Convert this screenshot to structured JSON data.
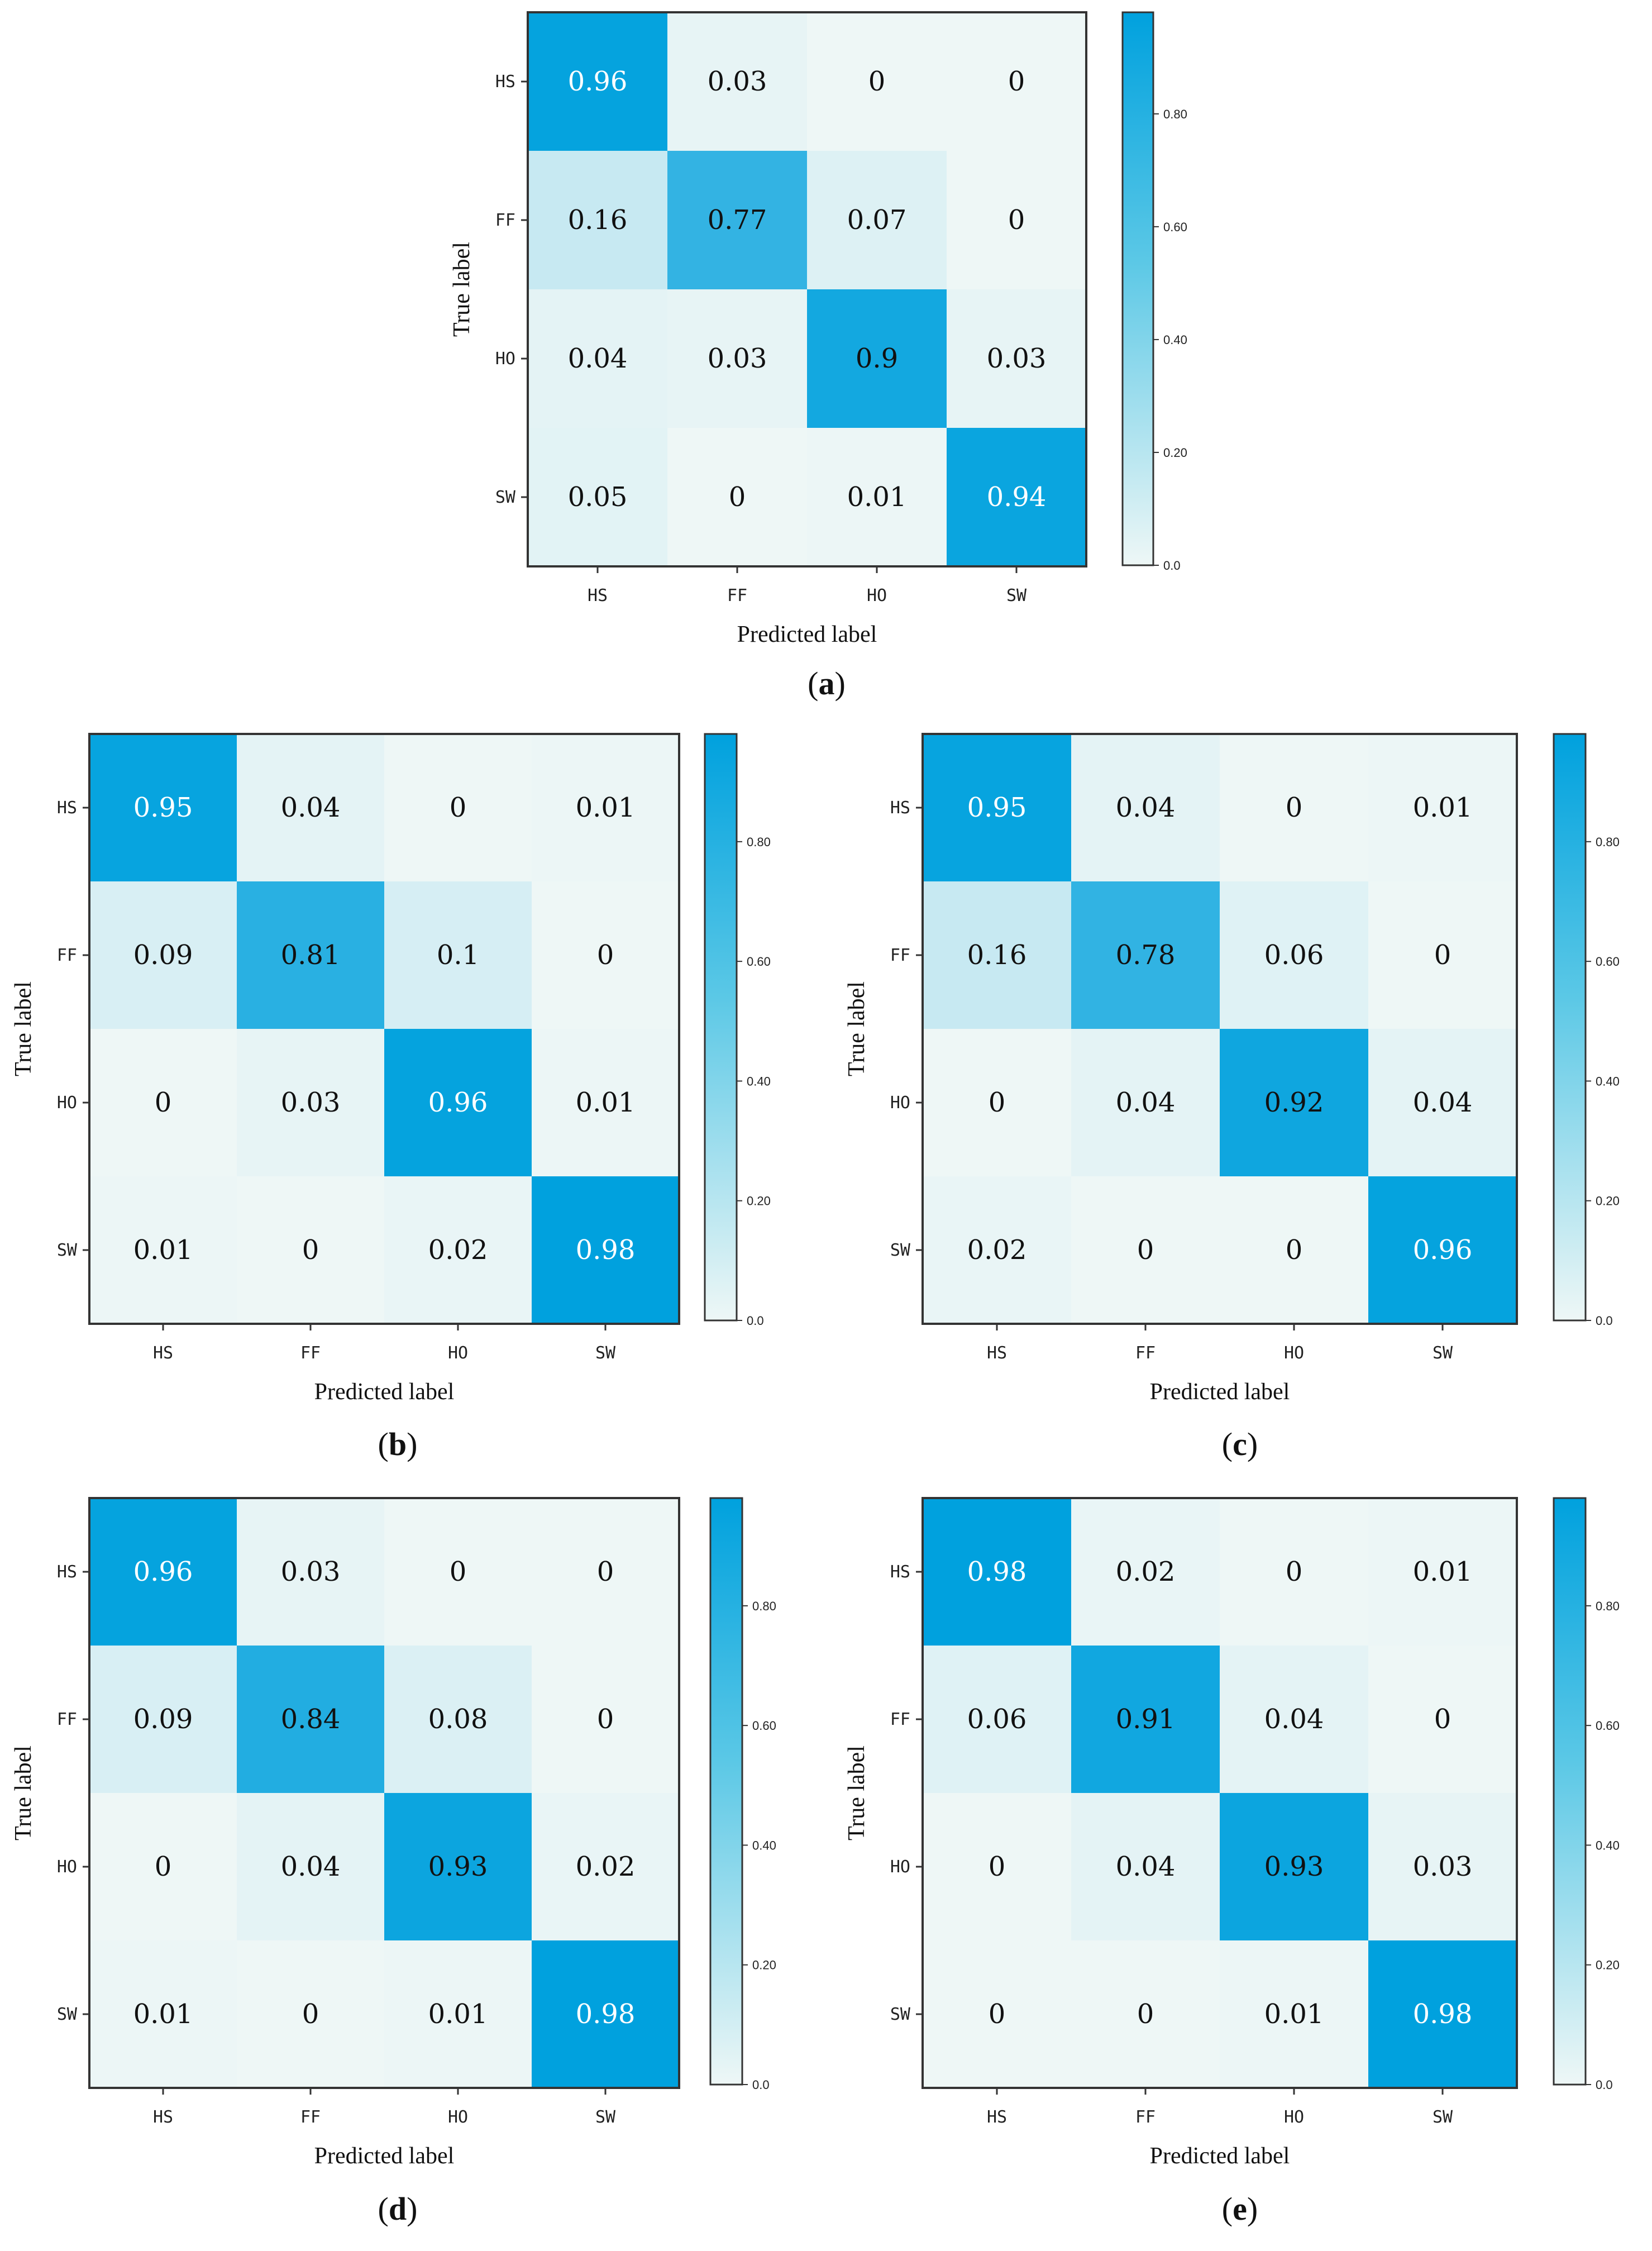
{
  "colors": {
    "low": "#eef7f6",
    "high": "#00a1de",
    "frame": "#333333",
    "text_dark": "#111111",
    "text_light": "#ffffff"
  },
  "chart_data": [
    {
      "type": "heatmap",
      "caption": "a",
      "xlabel": "Predicted label",
      "ylabel": "True label",
      "x_categories": [
        "HS",
        "FF",
        "HO",
        "SW"
      ],
      "y_categories": [
        "HS",
        "FF",
        "HO",
        "SW"
      ],
      "values": [
        [
          0.96,
          0.03,
          0,
          0
        ],
        [
          0.16,
          0.77,
          0.07,
          0
        ],
        [
          0.04,
          0.03,
          0.9,
          0.03
        ],
        [
          0.05,
          0,
          0.01,
          0.94
        ]
      ],
      "colorbar_ticks": [
        "0.0",
        "0.20",
        "0.40",
        "0.60",
        "0.80"
      ],
      "colorbar_range": [
        0,
        0.98
      ]
    },
    {
      "type": "heatmap",
      "caption": "b",
      "xlabel": "Predicted label",
      "ylabel": "True label",
      "x_categories": [
        "HS",
        "FF",
        "HO",
        "SW"
      ],
      "y_categories": [
        "HS",
        "FF",
        "HO",
        "SW"
      ],
      "values": [
        [
          0.95,
          0.04,
          0,
          0.01
        ],
        [
          0.09,
          0.81,
          0.1,
          0
        ],
        [
          0,
          0.03,
          0.96,
          0.01
        ],
        [
          0.01,
          0,
          0.02,
          0.98
        ]
      ],
      "colorbar_ticks": [
        "0.0",
        "0.20",
        "0.40",
        "0.60",
        "0.80"
      ],
      "colorbar_range": [
        0,
        0.98
      ]
    },
    {
      "type": "heatmap",
      "caption": "c",
      "xlabel": "Predicted label",
      "ylabel": "True label",
      "x_categories": [
        "HS",
        "FF",
        "HO",
        "SW"
      ],
      "y_categories": [
        "HS",
        "FF",
        "HO",
        "SW"
      ],
      "values": [
        [
          0.95,
          0.04,
          0,
          0.01
        ],
        [
          0.16,
          0.78,
          0.06,
          0
        ],
        [
          0,
          0.04,
          0.92,
          0.04
        ],
        [
          0.02,
          0,
          0,
          0.96
        ]
      ],
      "colorbar_ticks": [
        "0.0",
        "0.20",
        "0.40",
        "0.60",
        "0.80"
      ],
      "colorbar_range": [
        0,
        0.98
      ]
    },
    {
      "type": "heatmap",
      "caption": "d",
      "xlabel": "Predicted label",
      "ylabel": "True label",
      "x_categories": [
        "HS",
        "FF",
        "HO",
        "SW"
      ],
      "y_categories": [
        "HS",
        "FF",
        "HO",
        "SW"
      ],
      "values": [
        [
          0.96,
          0.03,
          0,
          0
        ],
        [
          0.09,
          0.84,
          0.08,
          0
        ],
        [
          0,
          0.04,
          0.93,
          0.02
        ],
        [
          0.01,
          0,
          0.01,
          0.98
        ]
      ],
      "colorbar_ticks": [
        "0.0",
        "0.20",
        "0.40",
        "0.60",
        "0.80"
      ],
      "colorbar_range": [
        0,
        0.98
      ]
    },
    {
      "type": "heatmap",
      "caption": "e",
      "xlabel": "Predicted label",
      "ylabel": "True label",
      "x_categories": [
        "HS",
        "FF",
        "HO",
        "SW"
      ],
      "y_categories": [
        "HS",
        "FF",
        "HO",
        "SW"
      ],
      "values": [
        [
          0.98,
          0.02,
          0,
          0.01
        ],
        [
          0.06,
          0.91,
          0.04,
          0
        ],
        [
          0,
          0.04,
          0.93,
          0.03
        ],
        [
          0,
          0,
          0.01,
          0.98
        ]
      ],
      "colorbar_ticks": [
        "0.0",
        "0.20",
        "0.40",
        "0.60",
        "0.80"
      ],
      "colorbar_range": [
        0,
        0.98
      ]
    }
  ]
}
